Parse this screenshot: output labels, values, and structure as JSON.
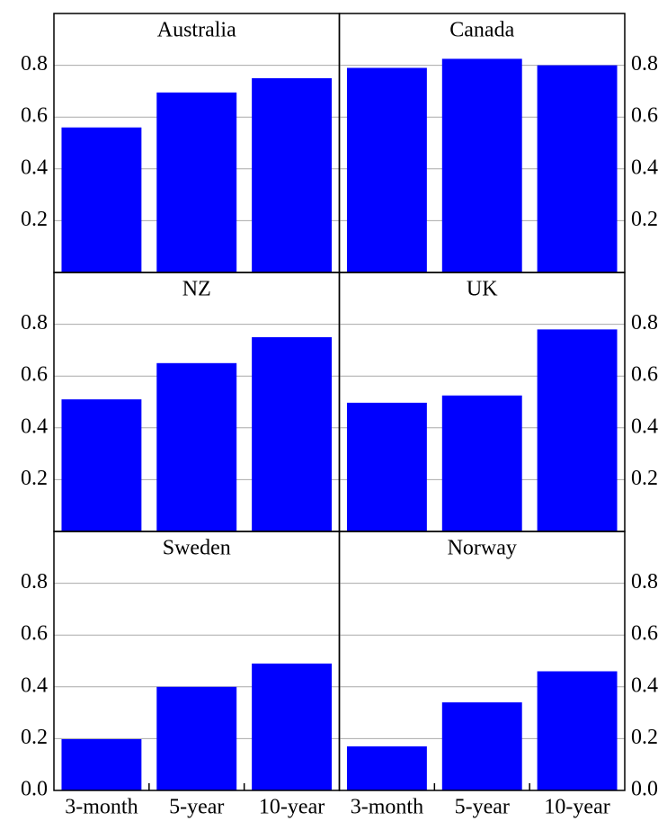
{
  "chart_data": [
    {
      "type": "bar",
      "title": "Australia",
      "values": [
        0.56,
        0.695,
        0.75
      ],
      "color": "#0000ff",
      "ylim": [
        0,
        1
      ],
      "yticks": [
        0.2,
        0.4,
        0.6,
        0.8
      ],
      "y_axis_side": "left",
      "grid": true
    },
    {
      "type": "bar",
      "title": "Canada",
      "values": [
        0.79,
        0.825,
        0.8
      ],
      "color": "#0000ff",
      "ylim": [
        0,
        1
      ],
      "yticks": [
        0.2,
        0.4,
        0.6,
        0.8
      ],
      "y_axis_side": "right",
      "grid": true
    },
    {
      "type": "bar",
      "title": "NZ",
      "values": [
        0.51,
        0.65,
        0.75
      ],
      "color": "#0000ff",
      "ylim": [
        0,
        1
      ],
      "yticks": [
        0.2,
        0.4,
        0.6,
        0.8
      ],
      "y_axis_side": "left",
      "grid": true
    },
    {
      "type": "bar",
      "title": "UK",
      "values": [
        0.497,
        0.525,
        0.78
      ],
      "color": "#0000ff",
      "ylim": [
        0,
        1
      ],
      "yticks": [
        0.2,
        0.4,
        0.6,
        0.8
      ],
      "y_axis_side": "right",
      "grid": true
    },
    {
      "type": "bar",
      "title": "Sweden",
      "categories": [
        "3-month",
        "5-year",
        "10-year"
      ],
      "values": [
        0.198,
        0.4,
        0.49
      ],
      "color": "#0000ff",
      "ylim": [
        0,
        1
      ],
      "yticks": [
        {
          "value": 0,
          "label": "0.0"
        },
        0.2,
        0.4,
        0.6,
        0.8
      ],
      "y_axis_side": "left",
      "grid": true
    },
    {
      "type": "bar",
      "title": "Norway",
      "categories": [
        "3-month",
        "5-year",
        "10-year"
      ],
      "values": [
        0.17,
        0.34,
        0.46
      ],
      "color": "#0000ff",
      "ylim": [
        0,
        1
      ],
      "yticks": [
        {
          "value": 0,
          "label": "0.0"
        },
        0.2,
        0.4,
        0.6,
        0.8
      ],
      "y_axis_side": "right",
      "grid": true
    }
  ]
}
